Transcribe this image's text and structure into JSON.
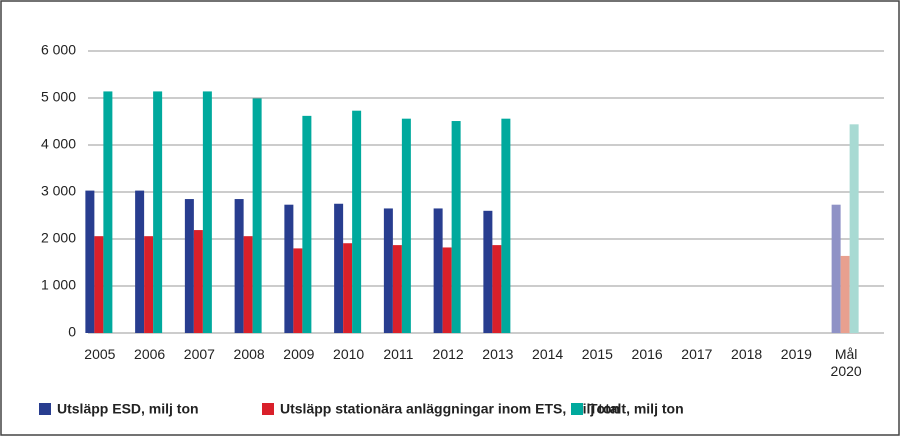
{
  "chart_data": {
    "type": "bar",
    "categories": [
      "2005",
      "2006",
      "2007",
      "2008",
      "2009",
      "2010",
      "2011",
      "2012",
      "2013",
      "2014",
      "2015",
      "2016",
      "2017",
      "2018",
      "2019",
      "Mål 2020"
    ],
    "series": [
      {
        "name": "Utsläpp ESD, milj ton",
        "color": "#283d8f",
        "target_color": "#8f92c6",
        "values": [
          3030,
          3030,
          2850,
          2850,
          2730,
          2750,
          2650,
          2650,
          2600,
          null,
          null,
          null,
          null,
          null,
          null,
          2730
        ]
      },
      {
        "name": "Utsläpp stationära anläggningar inom ETS, milj ton",
        "color": "#d9202a",
        "target_color": "#e8a08f",
        "values": [
          2060,
          2060,
          2190,
          2060,
          1800,
          1910,
          1870,
          1820,
          1870,
          null,
          null,
          null,
          null,
          null,
          null,
          1640
        ]
      },
      {
        "name": "Totalt, milj ton",
        "color": "#00a99d",
        "target_color": "#a8dad3",
        "values": [
          5140,
          5140,
          5140,
          4990,
          4620,
          4730,
          4560,
          4510,
          4560,
          null,
          null,
          null,
          null,
          null,
          null,
          4440
        ]
      }
    ],
    "ylim": [
      0,
      6000
    ],
    "yticks": [
      0,
      {
        "value": 1000,
        "label": "1 000"
      },
      {
        "value": 2000,
        "label": "2 000"
      },
      {
        "value": 3000,
        "label": "3 000"
      },
      {
        "value": 4000,
        "label": "4 000"
      },
      {
        "value": 5000,
        "label": "5 000"
      },
      {
        "value": 6000,
        "label": "6 000"
      }
    ],
    "grid": true
  }
}
